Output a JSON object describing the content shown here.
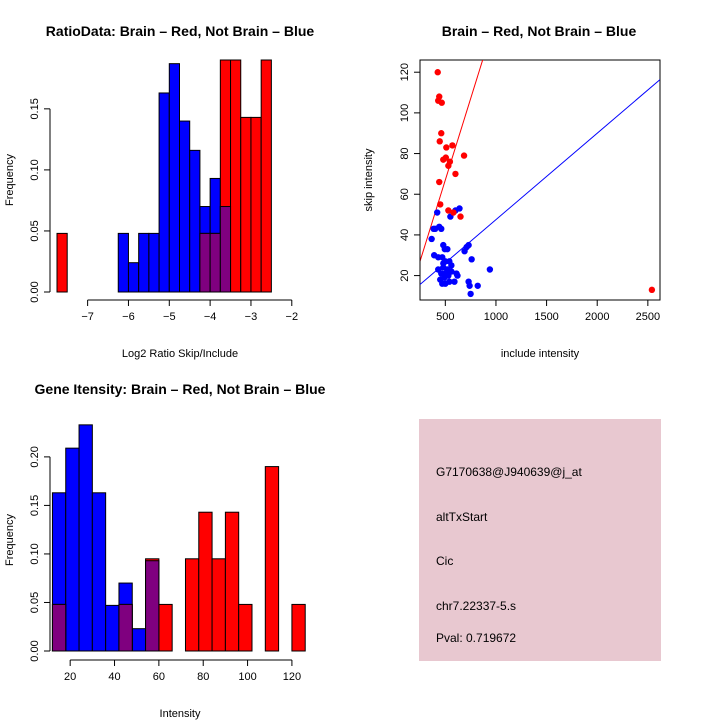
{
  "colors": {
    "red": "#ff0000",
    "blue": "#0000ff",
    "purple": "#7f007f",
    "panel_bg": "#e8c8d0",
    "pval": "#8b0000"
  },
  "chart_data": [
    {
      "type": "bar",
      "subtype": "overlaid-histogram",
      "title": "RatioData: Brain – Red, Not Brain – Blue",
      "xlabel": "Log2 Ratio Skip/Include",
      "ylabel": "Frequency",
      "xlim": [
        -7.75,
        -1.75
      ],
      "ylim": [
        0,
        0.19
      ],
      "xticks": [
        -7,
        -6,
        -5,
        -4,
        -3,
        -2
      ],
      "xtick_labels": [
        "−7",
        "−6",
        "−5",
        "−4",
        "−3",
        "−2"
      ],
      "yticks": [
        0.0,
        0.05,
        0.1,
        0.15
      ],
      "ytick_labels": [
        "0.00",
        "0.05",
        "0.10",
        "0.15"
      ],
      "series": [
        {
          "name": "Not Brain",
          "color": "blue",
          "bins": [
            [
              -6.25,
              -6.0,
              0.048
            ],
            [
              -6.0,
              -5.75,
              0.024
            ],
            [
              -5.75,
              -5.5,
              0.048
            ],
            [
              -5.5,
              -5.25,
              0.048
            ],
            [
              -5.25,
              -5.0,
              0.163
            ],
            [
              -5.0,
              -4.75,
              0.187
            ],
            [
              -4.75,
              -4.5,
              0.14
            ],
            [
              -4.5,
              -4.25,
              0.116
            ],
            [
              -4.25,
              -4.0,
              0.07
            ],
            [
              -4.0,
              -3.75,
              0.093
            ],
            [
              -3.75,
              -3.5,
              0.07
            ]
          ]
        },
        {
          "name": "Brain",
          "color": "red",
          "bins": [
            [
              -7.75,
              -7.5,
              0.048
            ],
            [
              -4.25,
              -4.0,
              0.048
            ],
            [
              -4.0,
              -3.75,
              0.048
            ],
            [
              -3.75,
              -3.5,
              0.19
            ],
            [
              -3.5,
              -3.25,
              0.19
            ],
            [
              -3.25,
              -3.0,
              0.143
            ],
            [
              -3.0,
              -2.75,
              0.143
            ],
            [
              -2.75,
              -2.5,
              0.19
            ]
          ]
        }
      ]
    },
    {
      "type": "scatter",
      "title": "Brain – Red, Not Brain – Blue",
      "xlabel": "include intensity",
      "ylabel": "skip intensity",
      "xlim": [
        250,
        2620
      ],
      "ylim": [
        8,
        126
      ],
      "xticks": [
        500,
        1000,
        1500,
        2000,
        2500
      ],
      "xtick_labels": [
        "500",
        "1000",
        "1500",
        "2000",
        "2500"
      ],
      "yticks": [
        20,
        40,
        60,
        80,
        100,
        120
      ],
      "ytick_labels": [
        "20",
        "40",
        "60",
        "80",
        "100",
        "120"
      ],
      "lines": [
        {
          "color": "red",
          "intercept": -13,
          "slope": 0.16
        },
        {
          "color": "blue",
          "intercept": 5,
          "slope": 0.0425
        }
      ],
      "series": [
        {
          "name": "Brain",
          "color": "red",
          "points": [
            [
              425,
              120
            ],
            [
              440,
              108
            ],
            [
              430,
              106
            ],
            [
              465,
              105
            ],
            [
              460,
              90
            ],
            [
              445,
              86
            ],
            [
              570,
              84
            ],
            [
              510,
              83
            ],
            [
              685,
              79
            ],
            [
              480,
              77
            ],
            [
              505,
              78
            ],
            [
              545,
              76
            ],
            [
              530,
              74
            ],
            [
              600,
              70
            ],
            [
              440,
              66
            ],
            [
              450,
              55
            ],
            [
              530,
              52
            ],
            [
              580,
              51
            ],
            [
              650,
              49
            ],
            [
              2540,
              13
            ]
          ]
        },
        {
          "name": "Not Brain",
          "color": "blue",
          "points": [
            [
              365,
              38
            ],
            [
              385,
              43
            ],
            [
              400,
              43
            ],
            [
              420,
              51
            ],
            [
              440,
              44
            ],
            [
              460,
              43
            ],
            [
              480,
              35
            ],
            [
              495,
              33
            ],
            [
              520,
              33
            ],
            [
              470,
              29
            ],
            [
              430,
              29
            ],
            [
              390,
              30
            ],
            [
              550,
              49
            ],
            [
              600,
              52
            ],
            [
              640,
              53
            ],
            [
              730,
              35
            ],
            [
              710,
              34
            ],
            [
              690,
              32
            ],
            [
              760,
              28
            ],
            [
              500,
              27
            ],
            [
              540,
              27
            ],
            [
              480,
              24
            ],
            [
              520,
              23
            ],
            [
              560,
              22
            ],
            [
              610,
              21
            ],
            [
              460,
              21
            ],
            [
              500,
              21
            ],
            [
              530,
              20
            ],
            [
              490,
              19
            ],
            [
              620,
              20
            ],
            [
              450,
              18
            ],
            [
              470,
              16
            ],
            [
              500,
              16
            ],
            [
              540,
              17
            ],
            [
              590,
              17
            ],
            [
              730,
              17
            ],
            [
              740,
              15
            ],
            [
              820,
              15
            ],
            [
              750,
              11
            ],
            [
              940,
              23
            ],
            [
              480,
              26
            ],
            [
              560,
              25
            ],
            [
              430,
              23
            ]
          ]
        }
      ]
    },
    {
      "type": "bar",
      "subtype": "overlaid-histogram",
      "title": "Gene Itensity: Brain – Red, Not Brain – Blue",
      "xlabel": "Intensity",
      "ylabel": "Frequency",
      "xlim": [
        10,
        125
      ],
      "ylim": [
        0,
        0.238
      ],
      "xticks": [
        20,
        40,
        60,
        80,
        100,
        120
      ],
      "xtick_labels": [
        "20",
        "40",
        "60",
        "80",
        "100",
        "120"
      ],
      "yticks": [
        0.0,
        0.05,
        0.1,
        0.15,
        0.2
      ],
      "ytick_labels": [
        "0.00",
        "0.05",
        "0.10",
        "0.15",
        "0.20"
      ],
      "series": [
        {
          "name": "Not Brain",
          "color": "blue",
          "bins": [
            [
              12,
              18,
              0.163
            ],
            [
              18,
              24,
              0.209
            ],
            [
              24,
              30,
              0.233
            ],
            [
              30,
              36,
              0.163
            ],
            [
              36,
              42,
              0.047
            ],
            [
              42,
              48,
              0.07
            ],
            [
              48,
              54,
              0.023
            ],
            [
              54,
              60,
              0.093
            ]
          ]
        },
        {
          "name": "Brain",
          "color": "red",
          "bins": [
            [
              12,
              18,
              0.048
            ],
            [
              42,
              48,
              0.048
            ],
            [
              54,
              60,
              0.095
            ],
            [
              60,
              66,
              0.048
            ],
            [
              72,
              78,
              0.095
            ],
            [
              78,
              84,
              0.143
            ],
            [
              84,
              90,
              0.095
            ],
            [
              90,
              96,
              0.143
            ],
            [
              96,
              102,
              0.048
            ],
            [
              108,
              114,
              0.19
            ],
            [
              120,
              126,
              0.048
            ]
          ]
        }
      ]
    }
  ],
  "info_panel": {
    "probe": "G7170638@J940639@j_at",
    "event": "altTxStart",
    "gene": "Cic",
    "location": "chr7.22337-5.s",
    "pval": "Pval: 0.719672"
  }
}
